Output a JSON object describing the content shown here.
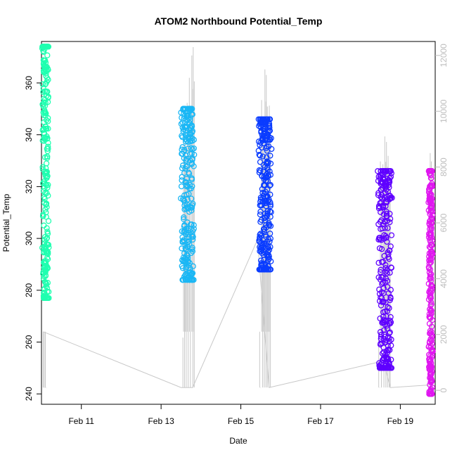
{
  "chart_data": {
    "type": "scatter",
    "title": "ATOM2 Northbound Potential_Temp",
    "xlabel": "Date",
    "ylabel": "Potential_Temp",
    "x_range": [
      "2024-02-10T00:00",
      "2024-02-19T21:00"
    ],
    "x_ticks": [
      {
        "label": "Feb 11",
        "date": "2024-02-11T00:00"
      },
      {
        "label": "Feb 13",
        "date": "2024-02-13T00:00"
      },
      {
        "label": "Feb 15",
        "date": "2024-02-15T00:00"
      },
      {
        "label": "Feb 17",
        "date": "2024-02-17T00:00"
      },
      {
        "label": "Feb 19",
        "date": "2024-02-19T00:00"
      }
    ],
    "y_left": {
      "label": "Potential_Temp",
      "range": [
        236,
        376
      ],
      "ticks": [
        240,
        260,
        280,
        300,
        320,
        340,
        360
      ]
    },
    "y_right": {
      "range": [
        -500,
        12500
      ],
      "ticks": [
        0,
        2000,
        4000,
        6000,
        8000,
        10000,
        12000
      ],
      "color": "#bdbdbd"
    },
    "grid": false,
    "series": [
      {
        "color": "#1fffb0",
        "from": "2024-02-10T00:50",
        "to": "2024-02-10T04:00",
        "min": 277,
        "max": 374
      },
      {
        "color": "#1ab7f5",
        "from": "2024-02-13T12:30",
        "to": "2024-02-13T19:30",
        "min": 284,
        "max": 350
      },
      {
        "color": "#0a3cff",
        "from": "2024-02-15T11:00",
        "to": "2024-02-15T18:00",
        "min": 288,
        "max": 346
      },
      {
        "color": "#5f00ff",
        "from": "2024-02-18T11:00",
        "to": "2024-02-18T18:30",
        "min": 250,
        "max": 326
      },
      {
        "color": "#e016f0",
        "from": "2024-02-19T17:30",
        "to": "2024-02-19T19:00",
        "min": 240,
        "max": 326
      }
    ],
    "altitude_line": {
      "color": "#c8c8c8",
      "baseline": [
        [
          "2024-02-10T01:00",
          2100
        ],
        [
          "2024-02-13T12:00",
          100
        ],
        [
          "2024-02-13T19:00",
          100
        ],
        [
          "2024-02-15T10:00",
          5400
        ],
        [
          "2024-02-15T17:00",
          100
        ],
        [
          "2024-02-18T10:00",
          1000
        ],
        [
          "2024-02-18T14:00",
          1000
        ],
        [
          "2024-02-18T18:00",
          100
        ],
        [
          "2024-02-19T19:30",
          200
        ]
      ],
      "spikes": [
        [
          "2024-02-10T01:00",
          100
        ],
        [
          "2024-02-10T01:40",
          100
        ],
        [
          "2024-02-10T02:20",
          100
        ],
        [
          "2024-02-13T12:30",
          2100
        ],
        [
          "2024-02-13T13:30",
          9500
        ],
        [
          "2024-02-13T14:30",
          8900
        ],
        [
          "2024-02-13T15:40",
          10300
        ],
        [
          "2024-02-13T17:00",
          11200
        ],
        [
          "2024-02-13T18:30",
          12000
        ],
        [
          "2024-02-13T19:20",
          12300
        ],
        [
          "2024-02-15T11:20",
          100
        ],
        [
          "2024-02-15T12:30",
          10400
        ],
        [
          "2024-02-15T13:30",
          9200
        ],
        [
          "2024-02-15T14:30",
          11500
        ],
        [
          "2024-02-15T15:20",
          11300
        ],
        [
          "2024-02-15T16:20",
          9800
        ],
        [
          "2024-02-15T17:10",
          10200
        ],
        [
          "2024-02-18T11:00",
          100
        ],
        [
          "2024-02-18T12:00",
          8200
        ],
        [
          "2024-02-18T13:30",
          8100
        ],
        [
          "2024-02-18T14:40",
          9100
        ],
        [
          "2024-02-18T15:40",
          8900
        ],
        [
          "2024-02-18T16:40",
          8400
        ],
        [
          "2024-02-18T17:20",
          7700
        ],
        [
          "2024-02-19T18:00",
          8500
        ],
        [
          "2024-02-19T18:40",
          8200
        ]
      ]
    }
  }
}
